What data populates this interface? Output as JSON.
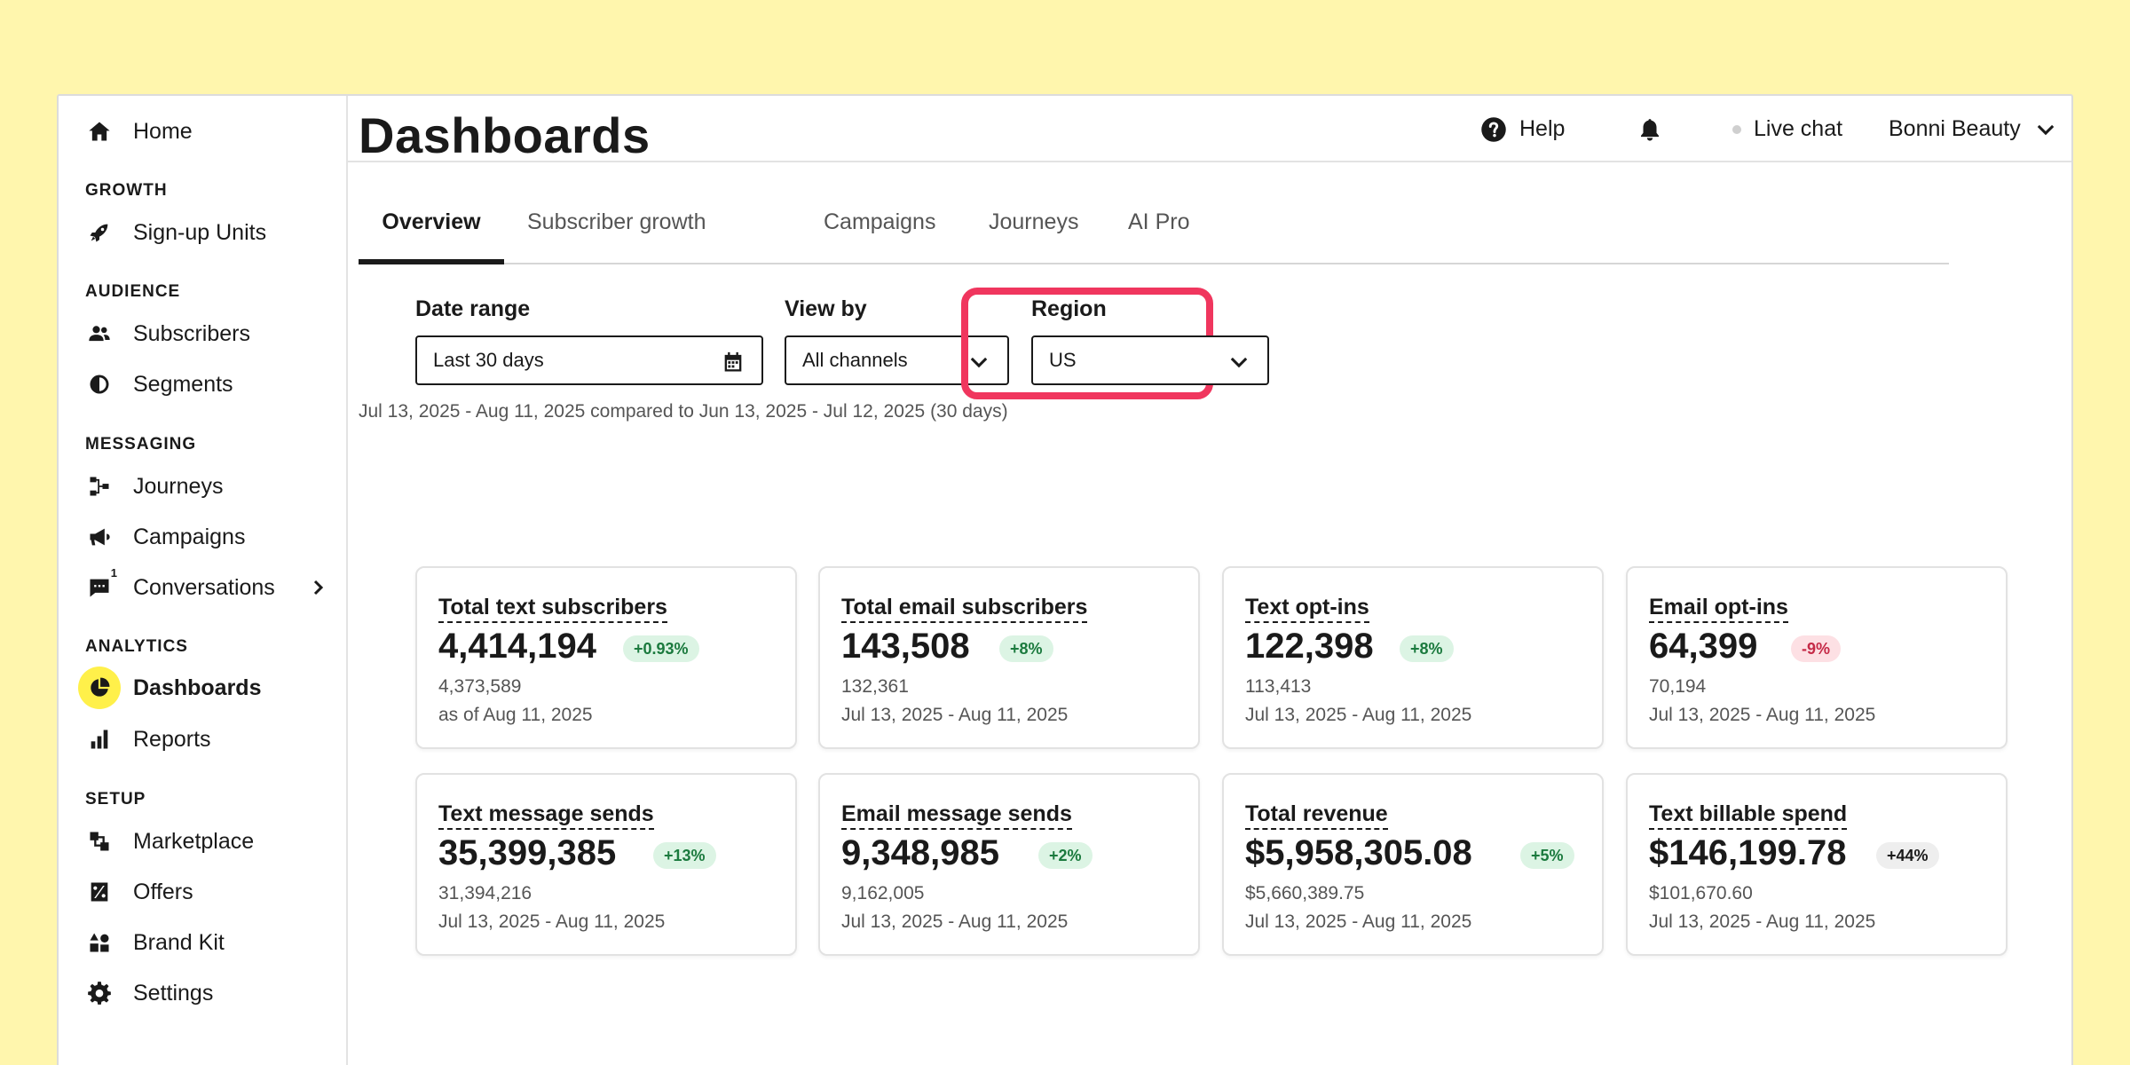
{
  "sidebar": {
    "home": "Home",
    "sections": {
      "growth": "GROWTH",
      "audience": "AUDIENCE",
      "messaging": "MESSAGING",
      "analytics": "ANALYTICS",
      "setup": "SETUP"
    },
    "items": {
      "signup_units": "Sign-up Units",
      "subscribers": "Subscribers",
      "segments": "Segments",
      "journeys": "Journeys",
      "campaigns": "Campaigns",
      "conversations": "Conversations",
      "conversations_badge": "1",
      "dashboards": "Dashboards",
      "reports": "Reports",
      "marketplace": "Marketplace",
      "offers": "Offers",
      "brand_kit": "Brand Kit",
      "settings": "Settings"
    }
  },
  "topbar": {
    "help": "Help",
    "live_chat": "Live chat",
    "account": "Bonni Beauty"
  },
  "page": {
    "title": "Dashboards",
    "tabs": [
      "Overview",
      "Subscriber growth",
      "Campaigns",
      "Journeys",
      "AI Pro"
    ],
    "active_tab": "Overview"
  },
  "filters": {
    "date_range": {
      "label": "Date range",
      "value": "Last 30 days"
    },
    "view_by": {
      "label": "View by",
      "value": "All channels"
    },
    "region": {
      "label": "Region",
      "value": "US"
    },
    "comparison_text": "Jul 13, 2025 - Aug 11, 2025 compared to Jun 13, 2025 - Jul 12, 2025 (30 days)"
  },
  "cards": [
    {
      "title": "Total text subscribers",
      "value": "4,414,194",
      "change": "+0.93%",
      "trend": "up",
      "previous": "4,373,589",
      "period": "as of Aug 11, 2025"
    },
    {
      "title": "Total email subscribers",
      "value": "143,508",
      "change": "+8%",
      "trend": "up",
      "previous": "132,361",
      "period": "Jul 13, 2025 - Aug 11, 2025"
    },
    {
      "title": "Text opt-ins",
      "value": "122,398",
      "change": "+8%",
      "trend": "up",
      "previous": "113,413",
      "period": "Jul 13, 2025 - Aug 11, 2025"
    },
    {
      "title": "Email opt-ins",
      "value": "64,399",
      "change": "-9%",
      "trend": "down",
      "previous": "70,194",
      "period": "Jul 13, 2025 - Aug 11, 2025"
    },
    {
      "title": "Text message sends",
      "value": "35,399,385",
      "change": "+13%",
      "trend": "up",
      "previous": "31,394,216",
      "period": "Jul 13, 2025 - Aug 11, 2025"
    },
    {
      "title": "Email message sends",
      "value": "9,348,985",
      "change": "+2%",
      "trend": "up",
      "previous": "9,162,005",
      "period": "Jul 13, 2025 - Aug 11, 2025"
    },
    {
      "title": "Total revenue",
      "value": "$5,958,305.08",
      "change": "+5%",
      "trend": "up",
      "previous": "$5,660,389.75",
      "period": "Jul 13, 2025 - Aug 11, 2025"
    },
    {
      "title": "Text billable spend",
      "value": "$146,199.78",
      "change": "+44%",
      "trend": "neutral",
      "previous": "$101,670.60",
      "period": "Jul 13, 2025 - Aug 11, 2025"
    }
  ],
  "colors": {
    "background": "#fff6ad",
    "active_nav_highlight": "#fff04a",
    "region_highlight": "#f0365e",
    "badge_up_bg": "#dcf4e4",
    "badge_down_bg": "#fde0e4"
  }
}
